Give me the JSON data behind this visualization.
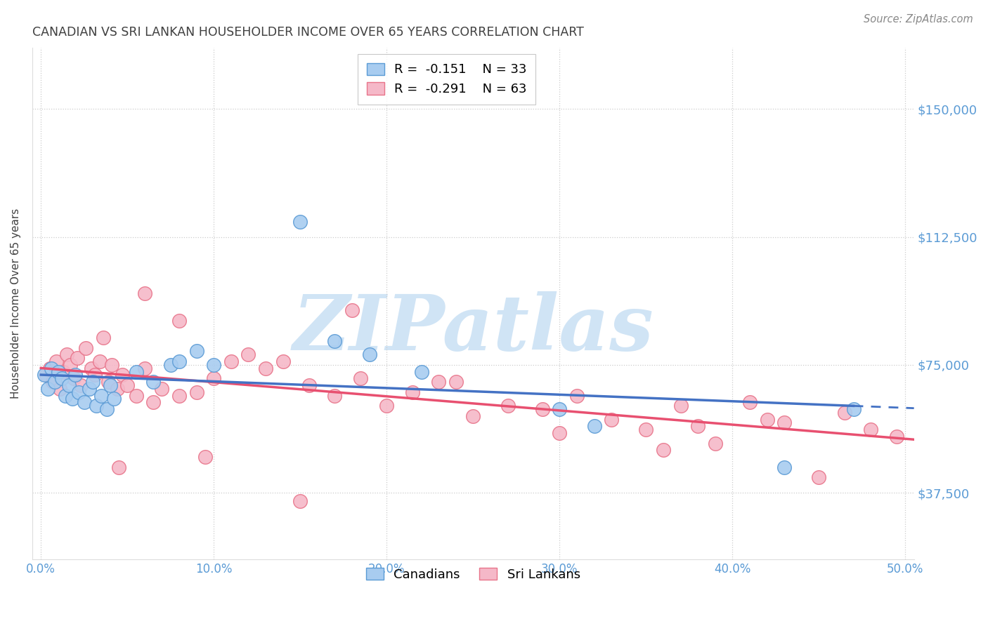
{
  "title": "CANADIAN VS SRI LANKAN HOUSEHOLDER INCOME OVER 65 YEARS CORRELATION CHART",
  "source": "Source: ZipAtlas.com",
  "ylabel": "Householder Income Over 65 years",
  "xlabel_ticks": [
    "0.0%",
    "10.0%",
    "20.0%",
    "30.0%",
    "40.0%",
    "50.0%"
  ],
  "xlabel_vals": [
    0.0,
    0.1,
    0.2,
    0.3,
    0.4,
    0.5
  ],
  "ylabel_ticks": [
    "$37,500",
    "$75,000",
    "$112,500",
    "$150,000"
  ],
  "ylabel_vals": [
    37500,
    75000,
    112500,
    150000
  ],
  "ylim": [
    18000,
    168000
  ],
  "xlim": [
    -0.005,
    0.505
  ],
  "canadian_R": "-0.151",
  "canadian_N": "33",
  "srilankan_R": "-0.291",
  "srilankan_N": "63",
  "canadian_color": "#A8CCF0",
  "srilankan_color": "#F5B8C8",
  "canadian_edge_color": "#5B9BD5",
  "srilankan_edge_color": "#E8748A",
  "trendline_canadian_color": "#4472C4",
  "trendline_srilankan_color": "#E85070",
  "watermark_text": "ZIPatlas",
  "watermark_color": "#D0E4F5",
  "background_color": "#FFFFFF",
  "grid_color": "#CCCCCC",
  "axis_label_color": "#5B9BD5",
  "title_color": "#404040",
  "canadians_x": [
    0.002,
    0.004,
    0.006,
    0.008,
    0.01,
    0.012,
    0.014,
    0.016,
    0.018,
    0.02,
    0.022,
    0.025,
    0.028,
    0.03,
    0.032,
    0.035,
    0.038,
    0.04,
    0.042,
    0.055,
    0.065,
    0.075,
    0.08,
    0.09,
    0.1,
    0.15,
    0.17,
    0.19,
    0.22,
    0.3,
    0.32,
    0.43,
    0.47
  ],
  "canadians_y": [
    72000,
    68000,
    74000,
    70000,
    73000,
    71000,
    66000,
    69000,
    65000,
    72000,
    67000,
    64000,
    68000,
    70000,
    63000,
    66000,
    62000,
    69000,
    65000,
    73000,
    70000,
    75000,
    76000,
    79000,
    75000,
    117000,
    82000,
    78000,
    73000,
    62000,
    57000,
    45000,
    62000
  ],
  "srilankans_x": [
    0.003,
    0.005,
    0.007,
    0.009,
    0.011,
    0.013,
    0.015,
    0.017,
    0.019,
    0.021,
    0.023,
    0.026,
    0.029,
    0.031,
    0.034,
    0.036,
    0.039,
    0.041,
    0.044,
    0.047,
    0.05,
    0.055,
    0.06,
    0.065,
    0.07,
    0.08,
    0.09,
    0.1,
    0.11,
    0.13,
    0.14,
    0.155,
    0.17,
    0.185,
    0.2,
    0.215,
    0.23,
    0.25,
    0.27,
    0.29,
    0.31,
    0.33,
    0.35,
    0.37,
    0.39,
    0.41,
    0.43,
    0.45,
    0.465,
    0.48,
    0.495,
    0.06,
    0.08,
    0.12,
    0.18,
    0.24,
    0.3,
    0.36,
    0.42,
    0.045,
    0.095,
    0.15,
    0.38
  ],
  "srilankans_y": [
    72000,
    74000,
    70000,
    76000,
    68000,
    73000,
    78000,
    75000,
    71000,
    77000,
    69000,
    80000,
    74000,
    72000,
    76000,
    83000,
    70000,
    75000,
    68000,
    72000,
    69000,
    66000,
    74000,
    64000,
    68000,
    66000,
    67000,
    71000,
    76000,
    74000,
    76000,
    69000,
    66000,
    71000,
    63000,
    67000,
    70000,
    60000,
    63000,
    62000,
    66000,
    59000,
    56000,
    63000,
    52000,
    64000,
    58000,
    42000,
    61000,
    56000,
    54000,
    96000,
    88000,
    78000,
    91000,
    70000,
    55000,
    50000,
    59000,
    45000,
    48000,
    35000,
    57000
  ]
}
